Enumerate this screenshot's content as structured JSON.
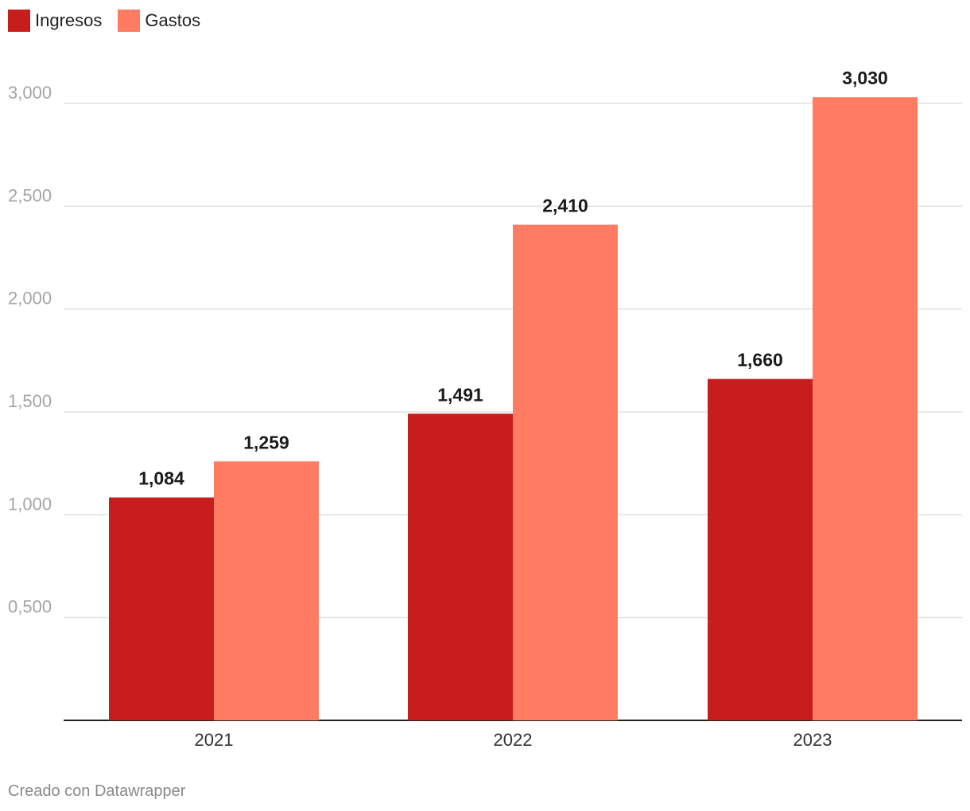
{
  "chart_data": {
    "type": "bar",
    "categories": [
      "2021",
      "2022",
      "2023"
    ],
    "series": [
      {
        "name": "Ingresos",
        "values": [
          1084,
          1491,
          1660
        ],
        "labels": [
          "1,084",
          "1,491",
          "1,660"
        ],
        "color": "#c71e1d"
      },
      {
        "name": "Gastos",
        "values": [
          1259,
          2410,
          3030
        ],
        "labels": [
          "1,259",
          "2,410",
          "3,030"
        ],
        "color": "#ff7c62"
      }
    ],
    "ylim": [
      0,
      3000
    ],
    "yticks": [
      500,
      1000,
      1500,
      2000,
      2500,
      3000
    ],
    "ytick_labels": [
      "0,500",
      "1,000",
      "1,500",
      "2,000",
      "2,500",
      "3,000"
    ],
    "grid": true,
    "legend_position": "top-left"
  },
  "footer": {
    "credit": "Creado con Datawrapper"
  },
  "colors": {
    "grid": "#e0e0e0",
    "axis": "#222222",
    "tick_text": "#a5a5a5"
  }
}
